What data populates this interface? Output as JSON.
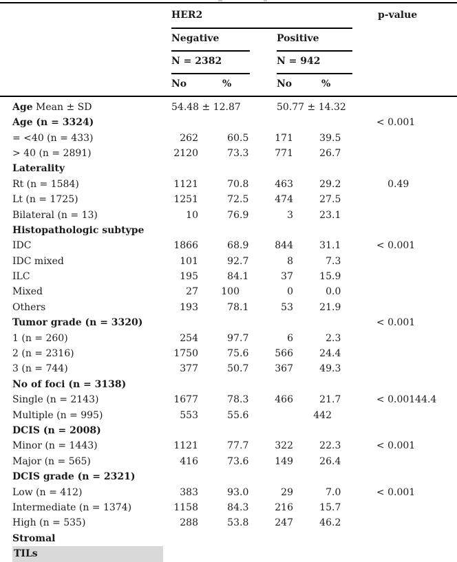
{
  "page": {
    "background": "#ffffff",
    "text_color": "#1b1b1b",
    "rule_color": "#000000",
    "highlight_color": "#d9d9d9"
  },
  "header": {
    "group_label": "HER2",
    "p_value_label": "p-value",
    "negative": {
      "label": "Negative",
      "n_label": "N = 2382",
      "count_label": "No",
      "percent_label": "%"
    },
    "positive": {
      "label": "Positive",
      "n_label": "N = 942",
      "count_label": "No",
      "percent_label": "%"
    }
  },
  "table": {
    "rows": [
      {
        "label": "Age Mean ± SD",
        "bold_prefix": "Age",
        "label_rest": " Mean ± SD",
        "type": "mean",
        "negative_mean": "54.48 ± 12.87",
        "positive_mean": "50.77 ± 14.32"
      },
      {
        "label": "Age (n = 3324)",
        "bold": true,
        "p_value": "< 0.001"
      },
      {
        "label": "= <40 (n = 433)",
        "negative_no": "262",
        "negative_pct": "60.5",
        "positive_no": "171",
        "positive_pct": "39.5"
      },
      {
        "label": "> 40 (n = 2891)",
        "negative_no": "2120",
        "negative_pct": "73.3",
        "positive_no": "771",
        "positive_pct": "26.7"
      },
      {
        "label": "Laterality",
        "bold": true
      },
      {
        "label": "Rt (n = 1584)",
        "negative_no": "1121",
        "negative_pct": "70.8",
        "positive_no": "463",
        "positive_pct": "29.2",
        "p_value": "0.49"
      },
      {
        "label": "Lt (n = 1725)",
        "negative_no": "1251",
        "negative_pct": "72.5",
        "positive_no": "474",
        "positive_pct": "27.5"
      },
      {
        "label": "Bilateral (n = 13)",
        "negative_no": "10",
        "negative_pct": "76.9",
        "positive_no": "3",
        "positive_pct": "23.1"
      },
      {
        "label": "Histopathologic subtype",
        "bold": true
      },
      {
        "label": "IDC",
        "negative_no": "1866",
        "negative_pct": "68.9",
        "positive_no": "844",
        "positive_pct": "31.1",
        "p_value": "< 0.001"
      },
      {
        "label": "IDC mixed",
        "negative_no": "101",
        "negative_pct": "92.7",
        "positive_no": "8",
        "positive_pct": "7.3"
      },
      {
        "label": "ILC",
        "negative_no": "195",
        "negative_pct": "84.1",
        "positive_no": "37",
        "positive_pct": "15.9"
      },
      {
        "label": "Mixed",
        "negative_no": "27",
        "negative_pct": "100",
        "positive_no": "0",
        "positive_pct": "0.0"
      },
      {
        "label": "Others",
        "negative_no": "193",
        "negative_pct": "78.1",
        "positive_no": "53",
        "positive_pct": "21.9"
      },
      {
        "label": "Tumor grade (n = 3320)",
        "bold": true,
        "p_value": "< 0.001"
      },
      {
        "label": "1 (n = 260)",
        "negative_no": "254",
        "negative_pct": "97.7",
        "positive_no": "6",
        "positive_pct": "2.3"
      },
      {
        "label": "2 (n = 2316)",
        "negative_no": "1750",
        "negative_pct": "75.6",
        "positive_no": "566",
        "positive_pct": "24.4"
      },
      {
        "label": "3 (n = 744)",
        "negative_no": "377",
        "negative_pct": "50.7",
        "positive_no": "367",
        "positive_pct": "49.3"
      },
      {
        "label": "No of foci (n = 3138)",
        "bold": true
      },
      {
        "label": "Single (n = 2143)",
        "negative_no": "1677",
        "negative_pct": "78.3",
        "positive_no": "466",
        "positive_pct": "21.7",
        "p_value": "< 0.00144.4"
      },
      {
        "label": "Multiple (n = 995)",
        "negative_no": "553",
        "negative_pct": "55.6",
        "positive_no": "",
        "positive_pct": "442"
      },
      {
        "label": "DCIS (n = 2008)",
        "bold": true
      },
      {
        "label": "Minor (n = 1443)",
        "negative_no": "1121",
        "negative_pct": "77.7",
        "positive_no": "322",
        "positive_pct": "22.3",
        "p_value": "< 0.001"
      },
      {
        "label": "Major (n = 565)",
        "negative_no": "416",
        "negative_pct": "73.6",
        "positive_no": "149",
        "positive_pct": "26.4"
      },
      {
        "label": "DCIS grade (n = 2321)",
        "bold": true
      },
      {
        "label": "Low (n = 412)",
        "negative_no": "383",
        "negative_pct": "93.0",
        "positive_no": "29",
        "positive_pct": "7.0",
        "p_value": "< 0.001"
      },
      {
        "label": "Intermediate (n = 1374)",
        "negative_no": "1158",
        "negative_pct": "84.3",
        "positive_no": "216",
        "positive_pct": "15.7"
      },
      {
        "label": "High (n = 535)",
        "negative_no": "288",
        "negative_pct": "53.8",
        "positive_no": "247",
        "positive_pct": "46.2"
      }
    ],
    "partial_row": {
      "bold_text": "Stromal ",
      "highlighted_text": "TILs"
    }
  }
}
